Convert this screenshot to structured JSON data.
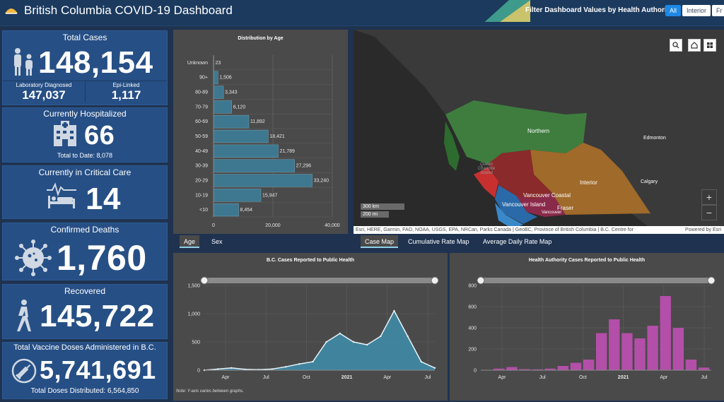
{
  "header": {
    "title": "British Columbia COVID-19 Dashboard",
    "filter_label": "Filter Dashboard Values by Health Authority:",
    "filters": [
      "All",
      "Interior",
      "Fr"
    ]
  },
  "stats": {
    "total_cases": {
      "title": "Total Cases",
      "value": "148,154",
      "lab_label": "Laboratory Diagnosed",
      "lab_value": "147,037",
      "epi_label": "Epi-Linked",
      "epi_value": "1,117"
    },
    "hospitalized": {
      "title": "Currently Hospitalized",
      "value": "66",
      "note": "Total to Date: 8,078"
    },
    "critical": {
      "title": "Currently in Critical Care",
      "value": "14"
    },
    "deaths": {
      "title": "Confirmed Deaths",
      "value": "1,760"
    },
    "recovered": {
      "title": "Recovered",
      "value": "145,722"
    },
    "vaccine": {
      "title": "Total Vaccine Doses Administered in B.C.",
      "value": "5,741,691",
      "note": "Total Doses Distributed: 6,564,850"
    }
  },
  "age_panel": {
    "tabs": [
      "Age",
      "Sex"
    ],
    "chart_data": {
      "type": "bar",
      "orientation": "horizontal",
      "title": "Distribution by Age",
      "categories": [
        "Unknown",
        "90+",
        "80-89",
        "70-79",
        "60-69",
        "50-59",
        "40-49",
        "30-39",
        "20-29",
        "10-19",
        "<10"
      ],
      "values": [
        23,
        1506,
        3343,
        6120,
        11892,
        18421,
        21789,
        27296,
        33240,
        15947,
        8454
      ],
      "value_labels": [
        "23",
        "1,506",
        "3,343",
        "6,120",
        "11,892",
        "18,421",
        "21,789",
        "27,296",
        "33,240",
        "15,947",
        "8,454"
      ],
      "xlim": [
        0,
        40000
      ],
      "xticks": [
        0,
        20000,
        40000
      ],
      "xtick_labels": [
        "0",
        "20,000",
        "40,000"
      ],
      "color": "#3e7890"
    }
  },
  "map": {
    "labels": [
      "Northern",
      "Edmonton",
      "Interior",
      "Calgary",
      "Vancouver Coastal",
      "Vancouver Island",
      "Fraser",
      "Vancouver",
      "Queen Charlotte Sound"
    ],
    "scale_km": "300 km",
    "scale_mi": "200 mi",
    "attribution": "Esri, HERE, Garmin, FAO, NOAA, USGS, EPA, NRCan, Parks Canada | GeoBC, Province of British Columbia | B.C. Centre for",
    "powered": "Powered by Esri",
    "tabs": [
      "Case Map",
      "Cumulative Rate Map",
      "Average Daily Rate Map"
    ],
    "icons": [
      "search-icon",
      "home-icon",
      "basemap-icon"
    ],
    "zoom_in": "+",
    "zoom_out": "−"
  },
  "charts": {
    "note": "Note: Y-axis varies between graphs.",
    "chart_data": [
      {
        "type": "area",
        "title": "B.C. Cases Reported to Public Health",
        "x_labels": [
          "Apr",
          "Jul",
          "Oct",
          "2021",
          "Apr",
          "Jul"
        ],
        "ylim": [
          0,
          1500
        ],
        "yticks": [
          0,
          500,
          1000,
          1500
        ],
        "ytick_labels": [
          "0",
          "500",
          "1,000",
          "1,500"
        ],
        "color": "#3f8aa6",
        "x": [
          "Feb",
          "Mar",
          "Apr",
          "May",
          "Jun",
          "Jul",
          "Aug",
          "Sep",
          "Oct",
          "Nov",
          "Dec",
          "Jan",
          "Feb",
          "Mar",
          "Apr",
          "May",
          "Jun",
          "Jul"
        ],
        "values": [
          0,
          20,
          40,
          15,
          10,
          20,
          60,
          110,
          150,
          500,
          650,
          500,
          450,
          600,
          1050,
          600,
          150,
          40
        ]
      },
      {
        "type": "bar",
        "title": "Health Authority Cases Reported to Public Health",
        "x_labels": [
          "Apr",
          "Jul",
          "Oct",
          "2021",
          "Apr",
          "Jul"
        ],
        "ylim": [
          0,
          800
        ],
        "yticks": [
          0,
          200,
          400,
          600,
          800
        ],
        "ytick_labels": [
          "0",
          "200",
          "400",
          "600",
          "800"
        ],
        "color": "#b34fa8",
        "x": [
          "Feb",
          "Mar",
          "Apr",
          "May",
          "Jun",
          "Jul",
          "Aug",
          "Sep",
          "Oct",
          "Nov",
          "Dec",
          "Jan",
          "Feb",
          "Mar",
          "Apr",
          "May",
          "Jun",
          "Jul"
        ],
        "values": [
          0,
          15,
          30,
          10,
          8,
          15,
          40,
          70,
          100,
          350,
          480,
          350,
          300,
          420,
          700,
          400,
          100,
          25
        ]
      }
    ]
  },
  "colors": {
    "header": "#1b3a5e",
    "stat_card": "#264f85",
    "panel": "#4a4a4a",
    "northern": "#3e7d3e",
    "interior": "#a06a2a",
    "coastal": "#2a6aa8",
    "island": "#c83030",
    "fraser": "#8a2a4a"
  }
}
